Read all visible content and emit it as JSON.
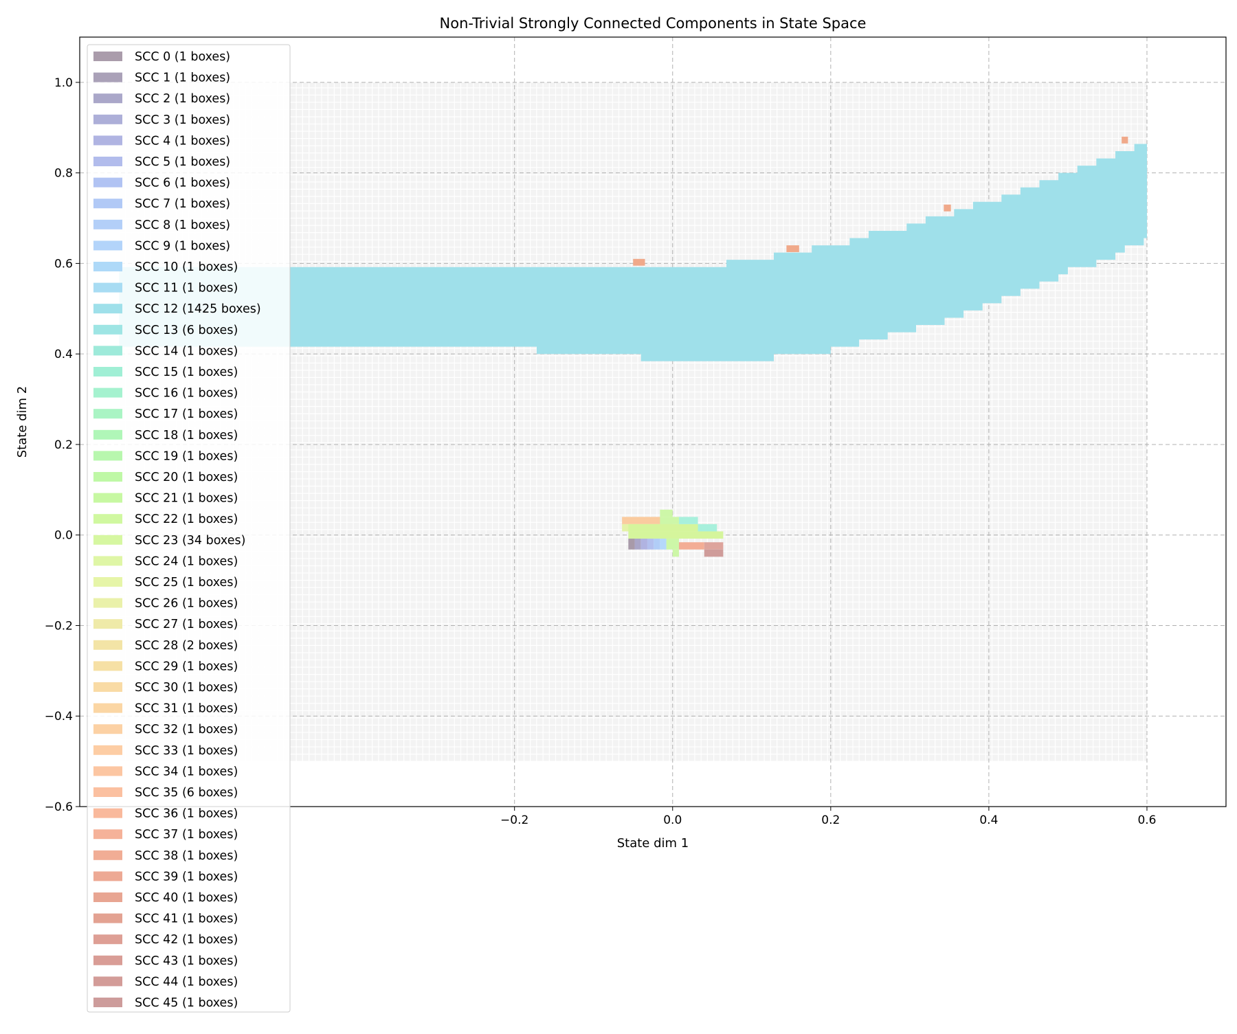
{
  "chart_data": {
    "type": "heatmap",
    "title": "Non-Trivial Strongly Connected Components in State Space",
    "xlabel": "State dim 1",
    "ylabel": "State dim 2",
    "xlim": [
      -0.75,
      0.7
    ],
    "ylim": [
      -0.6,
      1.1
    ],
    "xticks": [
      -0.2,
      0.0,
      0.2,
      0.4,
      0.6
    ],
    "xtick_labels": [
      "−0.2",
      "0.0",
      "0.2",
      "0.4",
      "0.6"
    ],
    "yticks": [
      -0.6,
      -0.4,
      -0.2,
      0.0,
      0.2,
      0.4,
      0.6,
      0.8,
      1.0
    ],
    "ytick_labels": [
      "−0.6",
      "−0.4",
      "−0.2",
      "0.0",
      "0.2",
      "0.4",
      "0.6",
      "0.8",
      "1.0"
    ],
    "grid": true,
    "legend_position": "upper-left",
    "domain_grid": {
      "x": [
        -0.7,
        0.6
      ],
      "y": [
        -0.5,
        1.0
      ],
      "color": "#ececec"
    },
    "band": {
      "color": "#9fe0ea",
      "points": [
        [
          -0.7,
          0.42,
          0.59
        ],
        [
          -0.6,
          0.42,
          0.59
        ],
        [
          -0.5,
          0.41,
          0.59
        ],
        [
          -0.4,
          0.41,
          0.59
        ],
        [
          -0.3,
          0.41,
          0.59
        ],
        [
          -0.2,
          0.41,
          0.59
        ],
        [
          -0.1,
          0.4,
          0.59
        ],
        [
          0.0,
          0.385,
          0.595
        ],
        [
          0.05,
          0.385,
          0.595
        ],
        [
          0.1,
          0.385,
          0.61
        ],
        [
          0.15,
          0.4,
          0.625
        ],
        [
          0.2,
          0.41,
          0.64
        ],
        [
          0.25,
          0.43,
          0.665
        ],
        [
          0.3,
          0.455,
          0.685
        ],
        [
          0.35,
          0.48,
          0.715
        ],
        [
          0.4,
          0.51,
          0.74
        ],
        [
          0.45,
          0.545,
          0.77
        ],
        [
          0.5,
          0.585,
          0.8
        ],
        [
          0.55,
          0.615,
          0.835
        ],
        [
          0.6,
          0.655,
          0.87
        ]
      ]
    },
    "patches": [
      {
        "color": "#f0a98a",
        "x0": -0.05,
        "x1": -0.035,
        "y0": 0.595,
        "y1": 0.61
      },
      {
        "color": "#f0a98a",
        "x0": 0.144,
        "x1": 0.16,
        "y0": 0.625,
        "y1": 0.64
      },
      {
        "color": "#f0a98a",
        "x0": 0.343,
        "x1": 0.352,
        "y0": 0.715,
        "y1": 0.73
      },
      {
        "color": "#f0a98a",
        "x0": 0.568,
        "x1": 0.576,
        "y0": 0.865,
        "y1": 0.88
      },
      {
        "color": "#facb9f",
        "x0": -0.064,
        "x1": 0.0,
        "y0": 0.024,
        "y1": 0.04
      },
      {
        "color": "#e4f2a8",
        "x0": -0.064,
        "x1": 0.008,
        "y0": 0.008,
        "y1": 0.024
      },
      {
        "color": "#d5f59c",
        "x0": -0.056,
        "x1": 0.064,
        "y0": -0.008,
        "y1": 0.008
      },
      {
        "color": "#d5f59c",
        "x0": -0.056,
        "x1": 0.056,
        "y0": 0.008,
        "y1": 0.024
      },
      {
        "color": "#cdf7a8",
        "x0": -0.016,
        "x1": 0.0,
        "y0": 0.04,
        "y1": 0.056
      },
      {
        "color": "#cdf7a8",
        "x0": -0.016,
        "x1": 0.008,
        "y0": 0.024,
        "y1": 0.04
      },
      {
        "color": "#cdf7a8",
        "x0": -0.008,
        "x1": 0.008,
        "y0": -0.032,
        "y1": -0.008
      },
      {
        "color": "#cdf7a8",
        "x0": 0.0,
        "x1": 0.008,
        "y0": -0.048,
        "y1": -0.032
      },
      {
        "color": "#a8f0dc",
        "x0": 0.008,
        "x1": 0.032,
        "y0": 0.024,
        "y1": 0.04
      },
      {
        "color": "#a8f0dc",
        "x0": 0.032,
        "x1": 0.056,
        "y0": 0.008,
        "y1": 0.024
      },
      {
        "color": "#a89aa9",
        "x0": -0.056,
        "x1": -0.048,
        "y0": -0.032,
        "y1": -0.008
      },
      {
        "color": "#aaa6c8",
        "x0": -0.048,
        "x1": -0.04,
        "y0": -0.032,
        "y1": -0.008
      },
      {
        "color": "#b0b3e1",
        "x0": -0.04,
        "x1": -0.032,
        "y0": -0.032,
        "y1": -0.008
      },
      {
        "color": "#b3c0ee",
        "x0": -0.032,
        "x1": -0.024,
        "y0": -0.032,
        "y1": -0.008
      },
      {
        "color": "#b1cdf7",
        "x0": -0.024,
        "x1": -0.016,
        "y0": -0.032,
        "y1": -0.008
      },
      {
        "color": "#b5d8fb",
        "x0": -0.016,
        "x1": -0.008,
        "y0": -0.032,
        "y1": -0.008
      },
      {
        "color": "#f3ad95",
        "x0": 0.008,
        "x1": 0.04,
        "y0": -0.032,
        "y1": -0.016
      },
      {
        "color": "#dda49c",
        "x0": 0.04,
        "x1": 0.064,
        "y0": -0.032,
        "y1": -0.016
      },
      {
        "color": "#cf9c9a",
        "x0": 0.04,
        "x1": 0.064,
        "y0": -0.048,
        "y1": -0.032
      }
    ],
    "legend": [
      {
        "label": "SCC 0 (1 boxes)",
        "color": "#aa9cab"
      },
      {
        "label": "SCC 1 (1 boxes)",
        "color": "#aaa1b8"
      },
      {
        "label": "SCC 2 (1 boxes)",
        "color": "#aaa7c9"
      },
      {
        "label": "SCC 3 (1 boxes)",
        "color": "#adafd8"
      },
      {
        "label": "SCC 4 (1 boxes)",
        "color": "#b0b4e2"
      },
      {
        "label": "SCC 5 (1 boxes)",
        "color": "#b2bcec"
      },
      {
        "label": "SCC 6 (1 boxes)",
        "color": "#b1c3f3"
      },
      {
        "label": "SCC 7 (1 boxes)",
        "color": "#b1c9f6"
      },
      {
        "label": "SCC 8 (1 boxes)",
        "color": "#b3cff8"
      },
      {
        "label": "SCC 9 (1 boxes)",
        "color": "#b3d4fa"
      },
      {
        "label": "SCC 10 (1 boxes)",
        "color": "#aed9f8"
      },
      {
        "label": "SCC 11 (1 boxes)",
        "color": "#a8dcf3"
      },
      {
        "label": "SCC 12 (1425 boxes)",
        "color": "#9fe0ea"
      },
      {
        "label": "SCC 13 (6 boxes)",
        "color": "#9ee5e4"
      },
      {
        "label": "SCC 14 (1 boxes)",
        "color": "#9eeada"
      },
      {
        "label": "SCC 15 (1 boxes)",
        "color": "#a0efd5"
      },
      {
        "label": "SCC 16 (1 boxes)",
        "color": "#a5f2cf"
      },
      {
        "label": "SCC 17 (1 boxes)",
        "color": "#aaf4c4"
      },
      {
        "label": "SCC 18 (1 boxes)",
        "color": "#b0f6b8"
      },
      {
        "label": "SCC 19 (1 boxes)",
        "color": "#b8f7ae"
      },
      {
        "label": "SCC 20 (1 boxes)",
        "color": "#bff8a6"
      },
      {
        "label": "SCC 21 (1 boxes)",
        "color": "#c7f8a2"
      },
      {
        "label": "SCC 22 (1 boxes)",
        "color": "#d0f8a0"
      },
      {
        "label": "SCC 23 (34 boxes)",
        "color": "#d6f7a1"
      },
      {
        "label": "SCC 24 (1 boxes)",
        "color": "#dff6a6"
      },
      {
        "label": "SCC 25 (1 boxes)",
        "color": "#e6f5a8"
      },
      {
        "label": "SCC 26 (1 boxes)",
        "color": "#eaf1aa"
      },
      {
        "label": "SCC 27 (1 boxes)",
        "color": "#efeaa8"
      },
      {
        "label": "SCC 28 (2 boxes)",
        "color": "#f3e4a6"
      },
      {
        "label": "SCC 29 (1 boxes)",
        "color": "#f6e0a5"
      },
      {
        "label": "SCC 30 (1 boxes)",
        "color": "#f9dba5"
      },
      {
        "label": "SCC 31 (1 boxes)",
        "color": "#fbd6a4"
      },
      {
        "label": "SCC 32 (1 boxes)",
        "color": "#fcd1a4"
      },
      {
        "label": "SCC 33 (1 boxes)",
        "color": "#fdcda4"
      },
      {
        "label": "SCC 34 (1 boxes)",
        "color": "#fcc6a2"
      },
      {
        "label": "SCC 35 (6 boxes)",
        "color": "#fbc0a0"
      },
      {
        "label": "SCC 36 (1 boxes)",
        "color": "#f9b99c"
      },
      {
        "label": "SCC 37 (1 boxes)",
        "color": "#f5b299"
      },
      {
        "label": "SCC 38 (1 boxes)",
        "color": "#f1ad95"
      },
      {
        "label": "SCC 39 (1 boxes)",
        "color": "#eda994"
      },
      {
        "label": "SCC 40 (1 boxes)",
        "color": "#e8a592"
      },
      {
        "label": "SCC 41 (1 boxes)",
        "color": "#e3a292"
      },
      {
        "label": "SCC 42 (1 boxes)",
        "color": "#de9f95"
      },
      {
        "label": "SCC 43 (1 boxes)",
        "color": "#d99d96"
      },
      {
        "label": "SCC 44 (1 boxes)",
        "color": "#d39c98"
      },
      {
        "label": "SCC 45 (1 boxes)",
        "color": "#cd9c9b"
      }
    ]
  }
}
